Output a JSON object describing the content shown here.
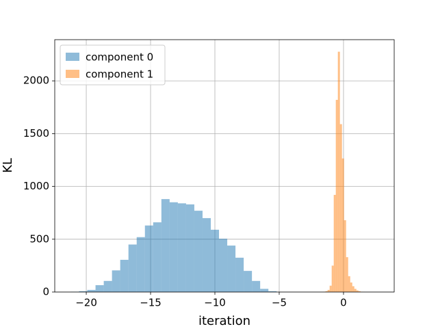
{
  "chart_data": {
    "type": "histogram",
    "xlabel": "iteration",
    "ylabel": "KL",
    "xlim": [
      -22.45,
      3.94
    ],
    "ylim": [
      0,
      2390
    ],
    "xticks": [
      {
        "value": -20,
        "label": "−20"
      },
      {
        "value": -15,
        "label": "−15"
      },
      {
        "value": -10,
        "label": "−10"
      },
      {
        "value": -5,
        "label": "−5"
      },
      0
    ],
    "yticks": [
      0,
      500,
      1000,
      1500,
      2000
    ],
    "grid": true,
    "legend": "upper left",
    "alpha": 0.5,
    "series": [
      {
        "name": "component 0",
        "color": "#1f77b4",
        "bins": [
          -21.2,
          -20.56,
          -19.92,
          -19.28,
          -18.64,
          -18.0,
          -17.36,
          -16.72,
          -16.08,
          -15.44,
          -14.8,
          -14.16,
          -13.52,
          -12.88,
          -12.24,
          -11.6,
          -10.96,
          -10.32,
          -9.68,
          -9.04,
          -8.4,
          -7.76,
          -7.12,
          -6.48,
          -5.84,
          -5.2
        ],
        "values": [
          3,
          8,
          20,
          65,
          105,
          205,
          305,
          450,
          520,
          630,
          660,
          880,
          850,
          840,
          830,
          770,
          700,
          590,
          505,
          440,
          325,
          200,
          105,
          30,
          8
        ]
      },
      {
        "name": "component 1",
        "color": "#ff7f0e",
        "bins": [
          -1.56,
          -1.4,
          -1.24,
          -1.08,
          -0.92,
          -0.76,
          -0.6,
          -0.44,
          -0.28,
          -0.12,
          0.04,
          0.2,
          0.36,
          0.52,
          0.68,
          0.84,
          1.0,
          1.16,
          1.32,
          1.48,
          1.64
        ],
        "values": [
          3,
          8,
          20,
          60,
          250,
          920,
          1820,
          2276,
          1590,
          1265,
          680,
          330,
          150,
          90,
          55,
          30,
          15,
          8,
          3,
          1
        ]
      }
    ]
  }
}
